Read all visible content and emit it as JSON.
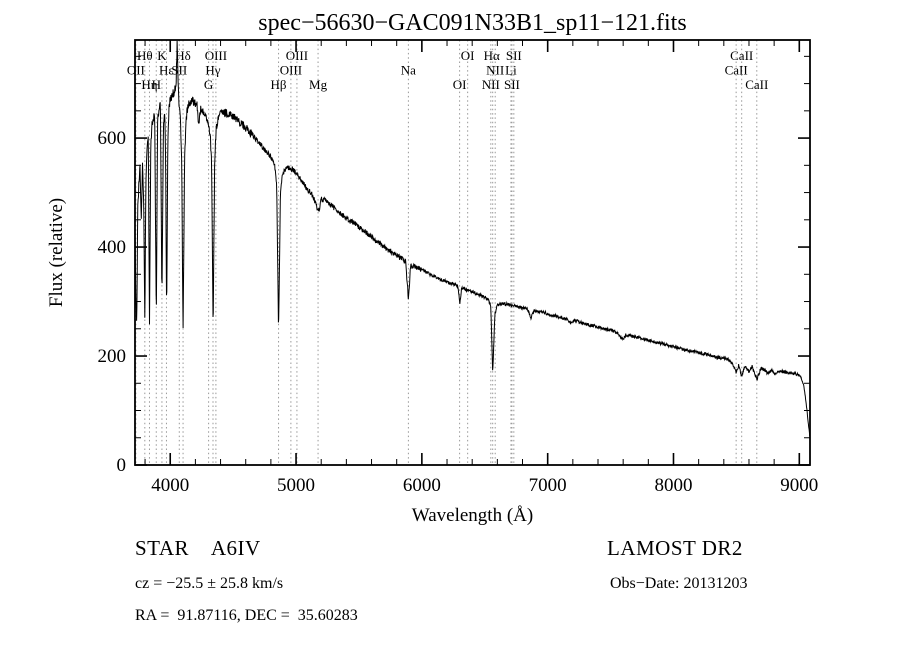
{
  "chart_data": {
    "type": "line",
    "title": "spec−56630−GAC091N33B1_sp11−121.fits",
    "xlabel": "Wavelength (Å)",
    "ylabel": "Flux (relative)",
    "xlim": [
      3720,
      9085
    ],
    "ylim": [
      0,
      780
    ],
    "x_major_ticks": [
      4000,
      5000,
      6000,
      7000,
      8000,
      9000
    ],
    "x_minor_step": 200,
    "y_major_ticks": [
      0,
      200,
      400,
      600
    ],
    "y_minor_step": 50,
    "grid": false,
    "line_color": "#000000",
    "marker_line_color": "#999999",
    "series": [
      {
        "name": "spectrum",
        "points": [
          [
            3700,
            225
          ],
          [
            3712,
            330
          ],
          [
            3720,
            430
          ],
          [
            3727,
            300
          ],
          [
            3734,
            258
          ],
          [
            3742,
            470
          ],
          [
            3752,
            525
          ],
          [
            3760,
            550
          ],
          [
            3770,
            445
          ],
          [
            3780,
            550
          ],
          [
            3790,
            470
          ],
          [
            3798,
            262
          ],
          [
            3806,
            515
          ],
          [
            3816,
            585
          ],
          [
            3826,
            605
          ],
          [
            3835,
            252
          ],
          [
            3846,
            595
          ],
          [
            3856,
            625
          ],
          [
            3866,
            640
          ],
          [
            3877,
            635
          ],
          [
            3889,
            258
          ],
          [
            3900,
            635
          ],
          [
            3912,
            655
          ],
          [
            3922,
            660
          ],
          [
            3934,
            305
          ],
          [
            3946,
            625
          ],
          [
            3956,
            645
          ],
          [
            3964,
            555
          ],
          [
            3971,
            262
          ],
          [
            3981,
            600
          ],
          [
            3991,
            660
          ],
          [
            4001,
            672
          ],
          [
            4012,
            678
          ],
          [
            4024,
            682
          ],
          [
            4036,
            688
          ],
          [
            4046,
            695
          ],
          [
            4055,
            772
          ],
          [
            4063,
            695
          ],
          [
            4072,
            650
          ],
          [
            4081,
            645
          ],
          [
            4091,
            555
          ],
          [
            4102,
            238
          ],
          [
            4114,
            558
          ],
          [
            4126,
            635
          ],
          [
            4140,
            658
          ],
          [
            4156,
            665
          ],
          [
            4172,
            668
          ],
          [
            4192,
            665
          ],
          [
            4212,
            662
          ],
          [
            4226,
            618
          ],
          [
            4240,
            652
          ],
          [
            4260,
            648
          ],
          [
            4280,
            643
          ],
          [
            4300,
            628
          ],
          [
            4316,
            612
          ],
          [
            4329,
            555
          ],
          [
            4341,
            238
          ],
          [
            4353,
            558
          ],
          [
            4366,
            618
          ],
          [
            4381,
            638
          ],
          [
            4401,
            646
          ],
          [
            4421,
            648
          ],
          [
            4441,
            646
          ],
          [
            4461,
            644
          ],
          [
            4481,
            642
          ],
          [
            4501,
            639
          ],
          [
            4521,
            635
          ],
          [
            4541,
            631
          ],
          [
            4561,
            627
          ],
          [
            4581,
            623
          ],
          [
            4601,
            619
          ],
          [
            4631,
            611
          ],
          [
            4661,
            603
          ],
          [
            4691,
            595
          ],
          [
            4721,
            587
          ],
          [
            4751,
            579
          ],
          [
            4781,
            571
          ],
          [
            4811,
            562
          ],
          [
            4831,
            548
          ],
          [
            4846,
            518
          ],
          [
            4861,
            248
          ],
          [
            4876,
            498
          ],
          [
            4891,
            532
          ],
          [
            4911,
            542
          ],
          [
            4931,
            546
          ],
          [
            4951,
            546
          ],
          [
            4971,
            543
          ],
          [
            5001,
            536
          ],
          [
            5031,
            526
          ],
          [
            5061,
            516
          ],
          [
            5091,
            506
          ],
          [
            5121,
            498
          ],
          [
            5151,
            483
          ],
          [
            5172,
            466
          ],
          [
            5186,
            470
          ],
          [
            5201,
            488
          ],
          [
            5231,
            486
          ],
          [
            5261,
            480
          ],
          [
            5291,
            474
          ],
          [
            5321,
            468
          ],
          [
            5361,
            460
          ],
          [
            5401,
            453
          ],
          [
            5441,
            446
          ],
          [
            5481,
            440
          ],
          [
            5521,
            433
          ],
          [
            5561,
            426
          ],
          [
            5601,
            418
          ],
          [
            5651,
            409
          ],
          [
            5701,
            400
          ],
          [
            5751,
            392
          ],
          [
            5801,
            384
          ],
          [
            5841,
            378
          ],
          [
            5871,
            372
          ],
          [
            5893,
            306
          ],
          [
            5911,
            366
          ],
          [
            5941,
            364
          ],
          [
            5981,
            360
          ],
          [
            6021,
            356
          ],
          [
            6061,
            350
          ],
          [
            6101,
            346
          ],
          [
            6151,
            340
          ],
          [
            6201,
            336
          ],
          [
            6251,
            332
          ],
          [
            6286,
            328
          ],
          [
            6302,
            296
          ],
          [
            6316,
            326
          ],
          [
            6351,
            322
          ],
          [
            6401,
            318
          ],
          [
            6451,
            313
          ],
          [
            6501,
            308
          ],
          [
            6531,
            303
          ],
          [
            6548,
            292
          ],
          [
            6563,
            170
          ],
          [
            6581,
            278
          ],
          [
            6601,
            294
          ],
          [
            6641,
            296
          ],
          [
            6681,
            295
          ],
          [
            6721,
            293
          ],
          [
            6761,
            291
          ],
          [
            6801,
            289
          ],
          [
            6841,
            286
          ],
          [
            6867,
            270
          ],
          [
            6891,
            284
          ],
          [
            6931,
            282
          ],
          [
            6971,
            280
          ],
          [
            7001,
            277
          ],
          [
            7051,
            274
          ],
          [
            7101,
            271
          ],
          [
            7151,
            268
          ],
          [
            7181,
            261
          ],
          [
            7211,
            265
          ],
          [
            7251,
            263
          ],
          [
            7301,
            259
          ],
          [
            7351,
            256
          ],
          [
            7401,
            253
          ],
          [
            7451,
            250
          ],
          [
            7501,
            247
          ],
          [
            7551,
            243
          ],
          [
            7594,
            230
          ],
          [
            7621,
            239
          ],
          [
            7661,
            237
          ],
          [
            7701,
            235
          ],
          [
            7751,
            232
          ],
          [
            7801,
            229
          ],
          [
            7851,
            226
          ],
          [
            7901,
            223
          ],
          [
            7951,
            220
          ],
          [
            8001,
            217
          ],
          [
            8051,
            214
          ],
          [
            8101,
            211
          ],
          [
            8151,
            209
          ],
          [
            8201,
            206
          ],
          [
            8251,
            204
          ],
          [
            8301,
            201
          ],
          [
            8351,
            198
          ],
          [
            8401,
            196
          ],
          [
            8441,
            193
          ],
          [
            8471,
            186
          ],
          [
            8498,
            169
          ],
          [
            8520,
            184
          ],
          [
            8542,
            162
          ],
          [
            8566,
            182
          ],
          [
            8598,
            171
          ],
          [
            8626,
            181
          ],
          [
            8662,
            157
          ],
          [
            8696,
            178
          ],
          [
            8726,
            174
          ],
          [
            8751,
            167
          ],
          [
            8779,
            174
          ],
          [
            8806,
            166
          ],
          [
            8836,
            173
          ],
          [
            8866,
            172
          ],
          [
            8901,
            170
          ],
          [
            8941,
            168
          ],
          [
            8981,
            166
          ],
          [
            9011,
            162
          ],
          [
            9036,
            146
          ],
          [
            9056,
            111
          ],
          [
            9071,
            77
          ],
          [
            9083,
            53
          ]
        ]
      }
    ],
    "spectral_lines": {
      "dotted_line_wavelengths": [
        3727,
        3798,
        3835,
        3889,
        3934,
        3970,
        4072,
        4102,
        4305,
        4340,
        4363,
        4861,
        4959,
        5007,
        5175,
        5893,
        6300,
        6364,
        6548,
        6563,
        6583,
        6708,
        6716,
        6731,
        8498,
        8542,
        8662
      ],
      "label_rows": [
        [
          {
            "text": "Hθ",
            "wl": 3798
          },
          {
            "text": "K",
            "wl": 3934
          },
          {
            "text": "Hδ",
            "wl": 4102
          },
          {
            "text": "OIII",
            "wl": 4363
          },
          {
            "text": "OIII",
            "wl": 5007
          },
          {
            "text": "OI",
            "wl": 6364
          },
          {
            "text": "Hα",
            "wl": 6555
          },
          {
            "text": "SII",
            "wl": 6731
          },
          {
            "text": "CaII",
            "wl": 8542
          }
        ],
        [
          {
            "text": "OII",
            "wl": 3727
          },
          {
            "text": "Hε",
            "wl": 3970
          },
          {
            "text": "SII",
            "wl": 4072
          },
          {
            "text": "Hγ",
            "wl": 4340
          },
          {
            "text": "OIII",
            "wl": 4959
          },
          {
            "text": "Na",
            "wl": 5893
          },
          {
            "text": "NII",
            "wl": 6583
          },
          {
            "text": "Li",
            "wl": 6708
          },
          {
            "text": "CaII",
            "wl": 8498
          }
        ],
        [
          {
            "text": "Hη",
            "wl": 3835
          },
          {
            "text": "H",
            "wl": 3889
          },
          {
            "text": "G",
            "wl": 4305
          },
          {
            "text": "Hβ",
            "wl": 4861
          },
          {
            "text": "Mg",
            "wl": 5175
          },
          {
            "text": "OI",
            "wl": 6300
          },
          {
            "text": "NII",
            "wl": 6548
          },
          {
            "text": "SII",
            "wl": 6716
          },
          {
            "text": "CaII",
            "wl": 8662
          }
        ]
      ]
    }
  },
  "footer": {
    "class_label": "STAR    A6IV",
    "survey": "LAMOST DR2",
    "cz": "cz = −25.5 ± 25.8 km/s",
    "obs_date": "Obs−Date: 20131203",
    "ra_dec": "RA =  91.87116, DEC =  35.60283"
  }
}
